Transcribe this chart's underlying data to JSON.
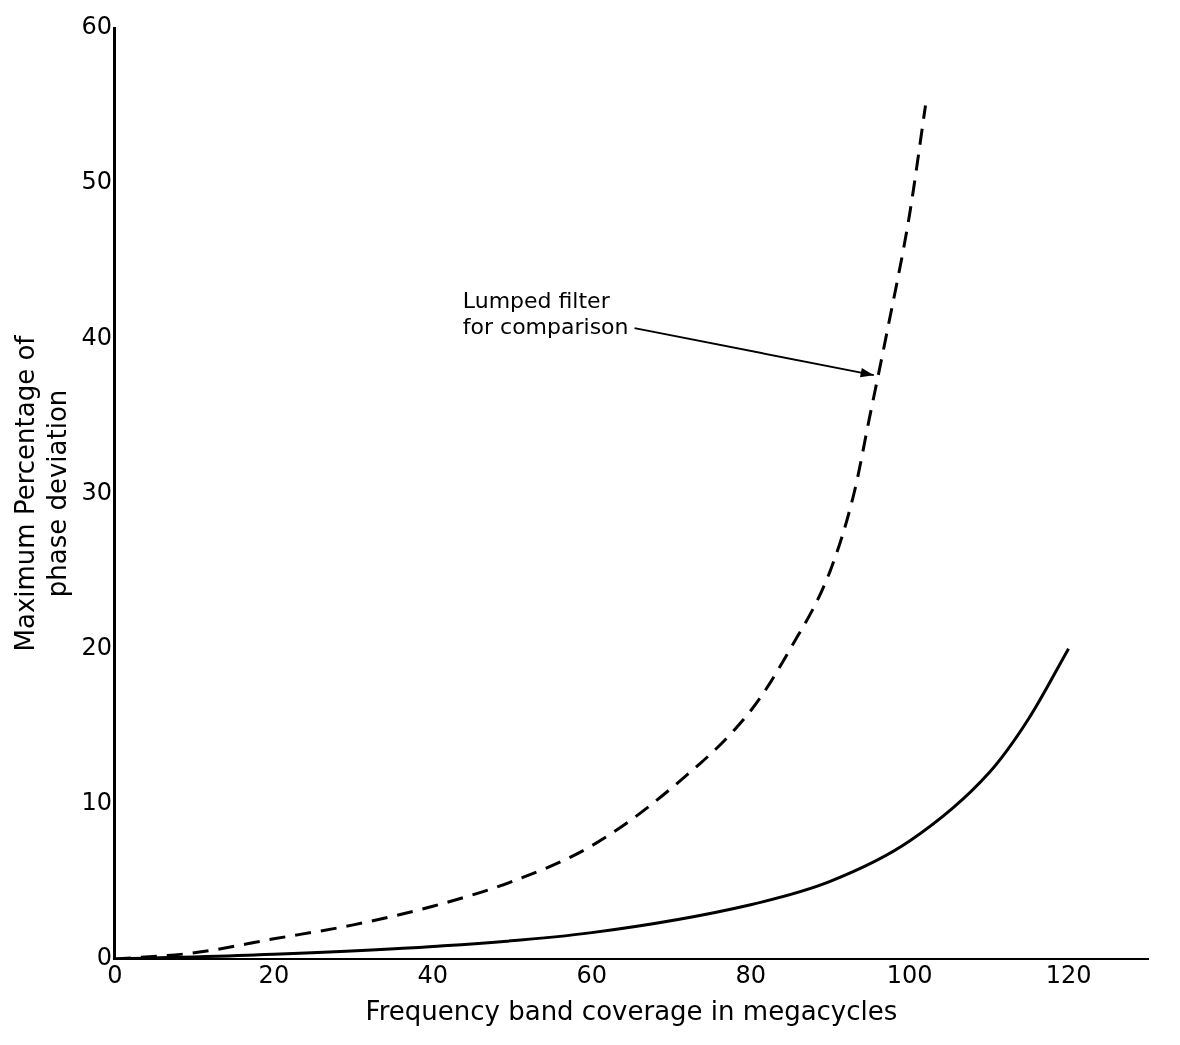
{
  "chart_data": {
    "type": "line",
    "xlabel": "Frequency band coverage in megacycles",
    "ylabel": "Maximum Percentage of\nphase deviation",
    "xlim": [
      0,
      130
    ],
    "xticks": [
      0,
      20,
      40,
      60,
      80,
      100,
      120
    ],
    "ylim": [
      0,
      60
    ],
    "yticks": [
      0,
      10,
      20,
      30,
      40,
      50,
      60
    ],
    "grid": false,
    "legend": false,
    "marker": "none",
    "series": [
      {
        "color": "#000000",
        "line_style": "dashed",
        "x": [
          0,
          10,
          20,
          30,
          40,
          50,
          60,
          70,
          80,
          85,
          90,
          93,
          95,
          97,
          100,
          102
        ],
        "values": [
          0,
          0.4,
          1.3,
          2.2,
          3.4,
          5,
          7.3,
          11,
          16,
          20,
          25,
          30,
          35,
          40,
          48,
          55
        ]
      },
      {
        "color": "#000000",
        "line_style": "solid",
        "x": [
          0,
          20,
          40,
          60,
          80,
          90,
          100,
          110,
          115,
          120
        ],
        "values": [
          0,
          0.3,
          0.8,
          1.7,
          3.5,
          5,
          7.6,
          12,
          15.5,
          20
        ]
      }
    ],
    "annotations": [
      {
        "text": "Lumped filter\nfor comparison",
        "x": 96,
        "y": 37.5
      }
    ]
  }
}
